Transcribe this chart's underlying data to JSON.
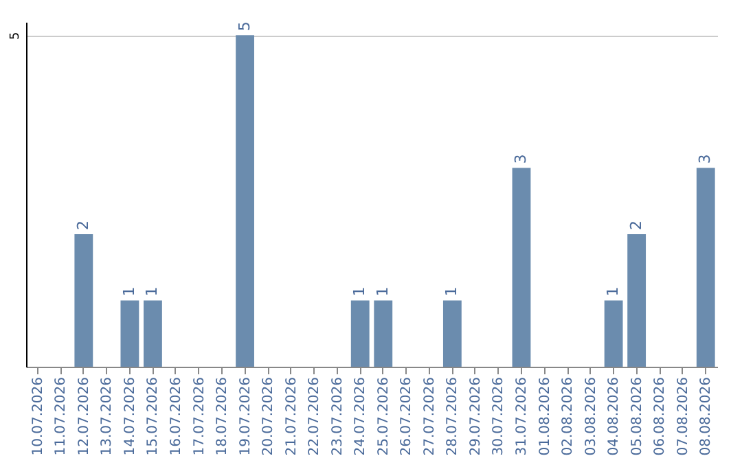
{
  "chart_data": {
    "type": "bar",
    "categories": [
      "10.07.2026",
      "11.07.2026",
      "12.07.2026",
      "13.07.2026",
      "14.07.2026",
      "15.07.2026",
      "16.07.2026",
      "17.07.2026",
      "18.07.2026",
      "19.07.2026",
      "20.07.2026",
      "21.07.2026",
      "22.07.2026",
      "23.07.2026",
      "24.07.2026",
      "25.07.2026",
      "26.07.2026",
      "27.07.2026",
      "28.07.2026",
      "29.07.2026",
      "30.07.2026",
      "31.07.2026",
      "01.08.2026",
      "02.08.2026",
      "03.08.2026",
      "04.08.2026",
      "05.08.2026",
      "06.08.2026",
      "07.08.2026",
      "08.08.2026"
    ],
    "values": [
      0,
      0,
      2,
      0,
      1,
      1,
      0,
      0,
      0,
      5,
      0,
      0,
      0,
      0,
      1,
      1,
      0,
      0,
      1,
      0,
      0,
      3,
      0,
      0,
      0,
      1,
      2,
      0,
      0,
      3
    ],
    "value_labels": [
      null,
      null,
      "2",
      null,
      "1",
      "1",
      null,
      null,
      null,
      "5",
      null,
      null,
      null,
      null,
      "1",
      "1",
      null,
      null,
      "1",
      null,
      null,
      "3",
      null,
      null,
      null,
      "1",
      "2",
      null,
      null,
      "3"
    ],
    "color": "#6b8cae",
    "ylim": [
      0,
      5.2
    ],
    "yticks": [
      5
    ],
    "grid": "y"
  }
}
